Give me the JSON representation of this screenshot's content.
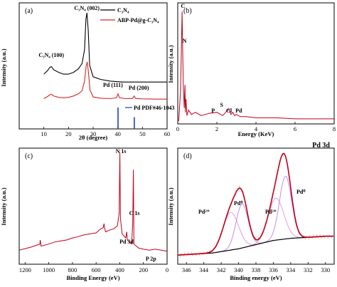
{
  "chart_data": [
    {
      "panel": "(a)",
      "type": "line",
      "xlabel": "2θ (degree)",
      "ylabel": "Intensity (a.u.)",
      "xlim": [
        0,
        60
      ],
      "xticks": [
        "10",
        "20",
        "30",
        "40",
        "50",
        "60"
      ],
      "legend_position": "top-right",
      "legend": [
        "C₃N₄",
        "ABP-Pd@g-C₃N₄"
      ],
      "series": [
        {
          "name": "C₃N₄",
          "color": "#000000",
          "x": [
            10,
            11.5,
            12.5,
            13.1,
            14,
            16,
            18,
            20,
            22,
            24,
            25.5,
            26.5,
            27.1,
            27.5,
            28,
            28.6,
            30,
            33,
            37,
            42,
            48,
            55,
            60
          ],
          "y": [
            0.3,
            0.34,
            0.38,
            0.385,
            0.35,
            0.32,
            0.3,
            0.3,
            0.32,
            0.36,
            0.42,
            0.58,
            0.93,
            1.0,
            0.8,
            0.4,
            0.27,
            0.24,
            0.22,
            0.21,
            0.21,
            0.21,
            0.21
          ]
        },
        {
          "name": "ABP-Pd@g-C₃N₄",
          "color": "#d62728",
          "x": [
            10,
            11.5,
            12.5,
            13.1,
            14,
            16,
            18,
            20,
            22,
            24,
            25.5,
            26.5,
            27.2,
            27.6,
            28.1,
            28.7,
            30,
            33,
            37,
            39.5,
            40.1,
            40.7,
            43,
            46,
            46.6,
            47.3,
            50,
            55,
            60
          ],
          "y": [
            0.02,
            0.045,
            0.065,
            0.07,
            0.05,
            0.035,
            0.03,
            0.035,
            0.05,
            0.075,
            0.11,
            0.22,
            0.4,
            0.44,
            0.32,
            0.12,
            0.04,
            0.025,
            0.02,
            0.03,
            0.075,
            0.03,
            0.02,
            0.022,
            0.05,
            0.022,
            0.018,
            0.015,
            0.015
          ]
        }
      ],
      "reference": {
        "label": "Pd PDF#46-1043",
        "color": "#1f3fbf",
        "x": [
          40.1,
          46.7
        ],
        "height": [
          1.0,
          0.55
        ]
      },
      "annotations": [
        {
          "text": "C₃N₄ (002)",
          "x": 27.5
        },
        {
          "text": "C₃N₄ (100)",
          "x": 13.1
        },
        {
          "text": "Pd (111)",
          "x": 40.1
        },
        {
          "text": "Pd (200)",
          "x": 46.7
        }
      ]
    },
    {
      "panel": "(b)",
      "type": "line",
      "xlabel": "Energy (KeV)",
      "ylabel": "Intensity (a.u.)",
      "xlim": [
        0,
        8
      ],
      "xticks": [
        "0",
        "2",
        "4",
        "6",
        "8"
      ],
      "series": [
        {
          "name": "",
          "color": "#c0001a",
          "x": [
            0.05,
            0.15,
            0.22,
            0.28,
            0.33,
            0.37,
            0.39,
            0.42,
            0.47,
            0.55,
            0.7,
            0.9,
            1.2,
            1.6,
            2.0,
            2.3,
            2.5,
            2.62,
            2.72,
            2.82,
            2.9,
            3.0,
            3.2,
            3.5,
            4,
            5,
            6,
            7,
            8
          ],
          "y": [
            0.0,
            0.3,
            1.0,
            0.35,
            0.12,
            0.33,
            0.08,
            0.2,
            0.05,
            0.1,
            0.06,
            0.08,
            0.05,
            0.07,
            0.08,
            0.05,
            0.09,
            0.11,
            0.06,
            0.08,
            0.05,
            0.06,
            0.04,
            0.04,
            0.03,
            0.03,
            0.02,
            0.02,
            0.02
          ]
        }
      ],
      "annotations": [
        {
          "text": "C",
          "x": 0.27
        },
        {
          "text": "N",
          "x": 0.39
        },
        {
          "text": "P",
          "x": 2.01
        },
        {
          "text": "S",
          "x": 2.31
        },
        {
          "text": "Cl",
          "x": 2.62
        },
        {
          "text": "Pd",
          "x": 2.84
        }
      ]
    },
    {
      "panel": "(c)",
      "type": "line",
      "xlabel": "Binding Energy (eV)",
      "ylabel": "Intensity (a.u.)",
      "xlim": [
        1250,
        0
      ],
      "xticks": [
        "1200",
        "1000",
        "800",
        "600",
        "400",
        "200",
        "0"
      ],
      "series": [
        {
          "name": "",
          "color": "#c0001a",
          "x": [
            1250,
            1200,
            1150,
            1100,
            1075,
            1072,
            1065,
            1000,
            950,
            900,
            850,
            800,
            760,
            700,
            650,
            600,
            560,
            540,
            533,
            528,
            520,
            480,
            450,
            420,
            405,
            399,
            394,
            380,
            350,
            341,
            336,
            320,
            300,
            290,
            285,
            280,
            260,
            240,
            200,
            150,
            100,
            50,
            0
          ],
          "y": [
            0.04,
            0.055,
            0.07,
            0.09,
            0.1,
            0.14,
            0.08,
            0.1,
            0.12,
            0.13,
            0.14,
            0.16,
            0.17,
            0.19,
            0.2,
            0.21,
            0.25,
            0.26,
            0.3,
            0.26,
            0.22,
            0.24,
            0.25,
            0.28,
            0.4,
            1.0,
            0.35,
            0.2,
            0.16,
            0.22,
            0.14,
            0.12,
            0.1,
            0.3,
            0.83,
            0.1,
            0.08,
            0.06,
            0.05,
            0.04,
            0.05,
            0.04,
            0.03
          ]
        }
      ],
      "annotations": [
        {
          "text": "N 1s",
          "x": 399
        },
        {
          "text": "C 1s",
          "x": 285
        },
        {
          "text": "Pd 3d",
          "x": 336
        },
        {
          "text": "P 2p",
          "x": 133
        }
      ]
    },
    {
      "panel": "(d)",
      "type": "line",
      "title": "Pd 3d",
      "xlabel": "Binding energy (eV)",
      "ylabel": "Intensity (a.u.)",
      "xlim": [
        347,
        329
      ],
      "xticks": [
        "346",
        "344",
        "342",
        "340",
        "338",
        "336",
        "334",
        "332",
        "330"
      ],
      "background": {
        "color": "#000000",
        "x": [
          347,
          343,
          340,
          338,
          336,
          334,
          332,
          330
        ],
        "y": [
          0.06,
          0.08,
          0.12,
          0.16,
          0.2,
          0.22,
          0.23,
          0.24
        ]
      },
      "components": [
        {
          "name": "Pd²⁺",
          "center": 340.9,
          "height": 0.36,
          "width": 0.9,
          "color": "#e29be2"
        },
        {
          "name": "Pd⁰",
          "center": 339.6,
          "height": 0.42,
          "width": 0.7,
          "color": "#c98ce6"
        },
        {
          "name": "Pd²⁺",
          "center": 335.7,
          "height": 0.4,
          "width": 0.9,
          "color": "#e29be2"
        },
        {
          "name": "Pd⁰",
          "center": 334.6,
          "height": 0.6,
          "width": 0.7,
          "color": "#c98ce6"
        }
      ],
      "fit_color": "#c0001a",
      "raw_color": "#f2b8b0",
      "annotations": [
        {
          "text": "Pd²⁺",
          "x": 341.8
        },
        {
          "text": "Pd⁰",
          "x": 339.4
        },
        {
          "text": "Pd²⁺",
          "x": 336.3
        },
        {
          "text": "Pd⁰",
          "x": 333.8
        }
      ]
    }
  ]
}
